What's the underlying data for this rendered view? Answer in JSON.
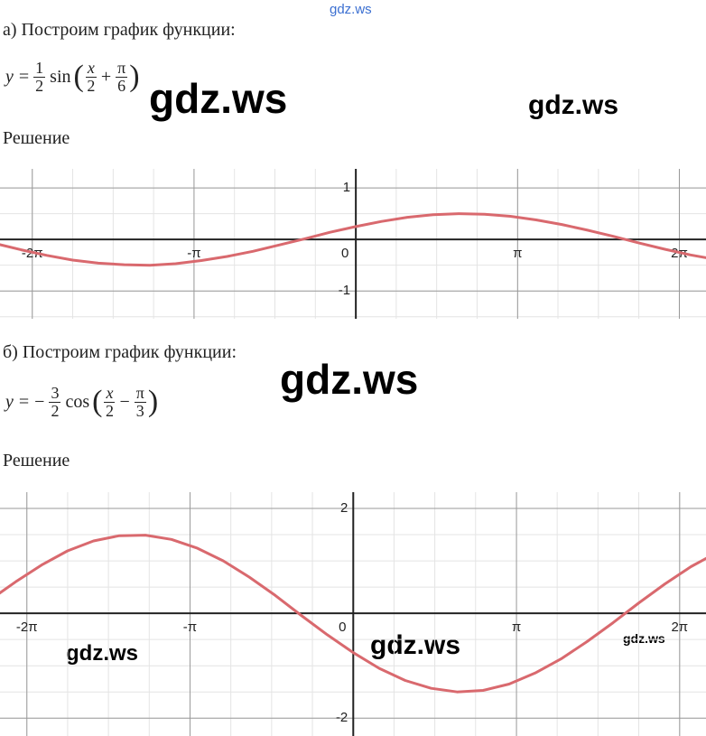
{
  "watermarks": [
    "gdz.ws",
    "gdz.ws",
    "gdz.ws",
    "gdz.ws",
    "gdz.ws",
    "gdz.ws",
    "gdz.ws"
  ],
  "sections": [
    {
      "heading": "а) Построим график функции:",
      "formula": [
        "y",
        "=",
        {
          "num": "1",
          "den": "2"
        },
        "sin",
        "(",
        {
          "num": "x",
          "den": "2"
        },
        "+",
        {
          "num": "π",
          "den": "6"
        },
        ")"
      ],
      "solution": "Решение"
    },
    {
      "heading": "б) Построим график функции:",
      "formula": [
        "y",
        "=",
        "−",
        {
          "num": "3",
          "den": "2"
        },
        "cos",
        "(",
        {
          "num": "x",
          "den": "2"
        },
        "−",
        {
          "num": "π",
          "den": "3"
        },
        ")"
      ],
      "solution": "Решение"
    }
  ],
  "chart_data": [
    {
      "type": "line",
      "grid": true,
      "x": [
        -7,
        -6.5,
        -6,
        -5.5,
        -5,
        -4.5,
        -4,
        -3.5,
        -3,
        -2.5,
        -2,
        -1.5,
        -1,
        -0.5,
        0,
        0.5,
        1,
        1.5,
        2,
        2.5,
        3,
        3.5,
        4,
        4.5,
        5,
        5.5,
        6,
        6.5,
        7
      ],
      "series": [
        {
          "color": "#d9696e",
          "values": [
            -0.08,
            -0.2,
            -0.31,
            -0.4,
            -0.46,
            -0.49,
            -0.5,
            -0.47,
            -0.41,
            -0.33,
            -0.23,
            -0.11,
            0.01,
            0.14,
            0.25,
            0.35,
            0.43,
            0.48,
            0.5,
            0.49,
            0.45,
            0.38,
            0.29,
            0.18,
            0.06,
            -0.07,
            -0.19,
            -0.3,
            -0.39
          ]
        }
      ],
      "xlim": [
        -6.91,
        6.8
      ],
      "ylim": [
        -1.54,
        1.37
      ],
      "xticks": [
        {
          "value": -6.283,
          "label": "-2π"
        },
        {
          "value": -3.142,
          "label": "-π"
        },
        0,
        {
          "value": 3.142,
          "label": "π"
        },
        {
          "value": 6.283,
          "label": "2π"
        }
      ],
      "yticks": [
        -1,
        1
      ]
    },
    {
      "type": "line",
      "grid": true,
      "x": [
        -7,
        -6.5,
        -6,
        -5.5,
        -5,
        -4.5,
        -4,
        -3.5,
        -3,
        -2.5,
        -2,
        -1.5,
        -1,
        -0.5,
        0,
        0.5,
        1,
        1.5,
        2,
        2.5,
        3,
        3.5,
        4,
        4.5,
        5,
        5.5,
        6,
        6.5,
        7
      ],
      "series": [
        {
          "color": "#d9696e",
          "values": [
            0.25,
            0.6,
            0.92,
            1.19,
            1.38,
            1.48,
            1.49,
            1.41,
            1.24,
            1.0,
            0.69,
            0.34,
            -0.04,
            -0.41,
            -0.75,
            -1.05,
            -1.28,
            -1.43,
            -1.5,
            -1.47,
            -1.35,
            -1.14,
            -0.87,
            -0.54,
            -0.18,
            0.2,
            0.56,
            0.89,
            1.16
          ]
        }
      ],
      "xlim": [
        -6.8,
        6.79
      ],
      "ylim": [
        -2.34,
        2.31
      ],
      "xticks": [
        {
          "value": -6.283,
          "label": "-2π"
        },
        {
          "value": -3.142,
          "label": "-π"
        },
        0,
        {
          "value": 3.142,
          "label": "π"
        },
        {
          "value": 6.283,
          "label": "2π"
        }
      ],
      "yticks": [
        -2,
        2
      ]
    }
  ]
}
